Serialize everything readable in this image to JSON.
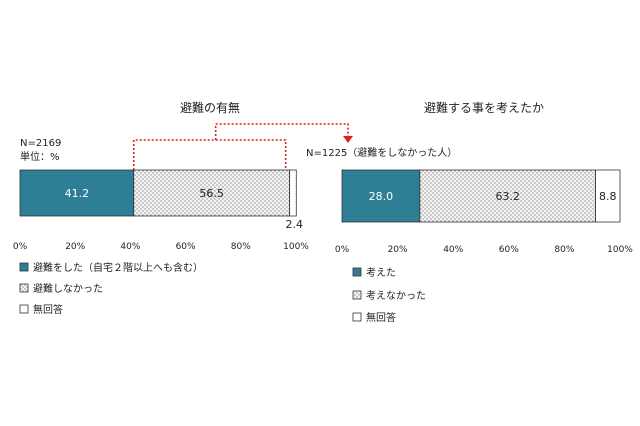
{
  "colors": {
    "accent": "#2e7f96",
    "dotted_fill": "#f2f2f2",
    "dot": "#8a8a8a",
    "connector": "#dd2222",
    "text": "#222222",
    "border": "#333333"
  },
  "chart_data": [
    {
      "type": "bar",
      "orientation": "horizontal-stacked",
      "title": "避難の有無",
      "n_label": "N=2169",
      "unit_label": "単位：%",
      "xlim": [
        0,
        100
      ],
      "x_ticks": [
        "0%",
        "20%",
        "40%",
        "60%",
        "80%",
        "100%"
      ],
      "segments": [
        {
          "name": "避難をした（自宅２階以上へも含む）",
          "value": 41.2,
          "label": "41.2",
          "style": "solid"
        },
        {
          "name": "避難しなかった",
          "value": 56.5,
          "label": "56.5",
          "style": "dotted"
        },
        {
          "name": "無回答",
          "value": 2.4,
          "label": "2.4",
          "style": "white"
        }
      ],
      "legend": [
        "避難をした（自宅２階以上へも含む）",
        "避難しなかった",
        "無回答"
      ]
    },
    {
      "type": "bar",
      "orientation": "horizontal-stacked",
      "title": "避難する事を考えたか",
      "n_label": "N=1225（避難をしなかった人）",
      "xlim": [
        0,
        100
      ],
      "x_ticks": [
        "0%",
        "20%",
        "40%",
        "60%",
        "80%",
        "100%"
      ],
      "segments": [
        {
          "name": "考えた",
          "value": 28.0,
          "label": "28.0",
          "style": "solid"
        },
        {
          "name": "考えなかった",
          "value": 63.2,
          "label": "63.2",
          "style": "dotted"
        },
        {
          "name": "無回答",
          "value": 8.8,
          "label": "8.8",
          "style": "white"
        }
      ],
      "legend": [
        "考えた",
        "考えなかった",
        "無回答"
      ]
    }
  ]
}
